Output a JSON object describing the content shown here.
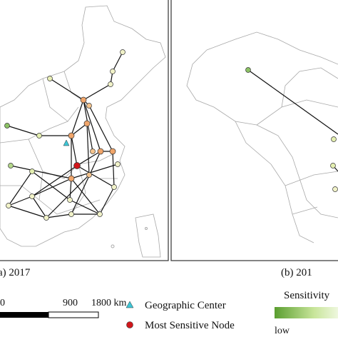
{
  "panels": [
    {
      "label": "a) 2017"
    },
    {
      "label": "(b) 201"
    }
  ],
  "scale_bar": {
    "ticks": [
      "0",
      "900",
      "1800 km"
    ]
  },
  "legend": {
    "items": [
      "Geographic Center",
      "Most Sensitive Node"
    ],
    "colorbar": {
      "title": "Sensitivity",
      "low_label": "low"
    }
  }
}
